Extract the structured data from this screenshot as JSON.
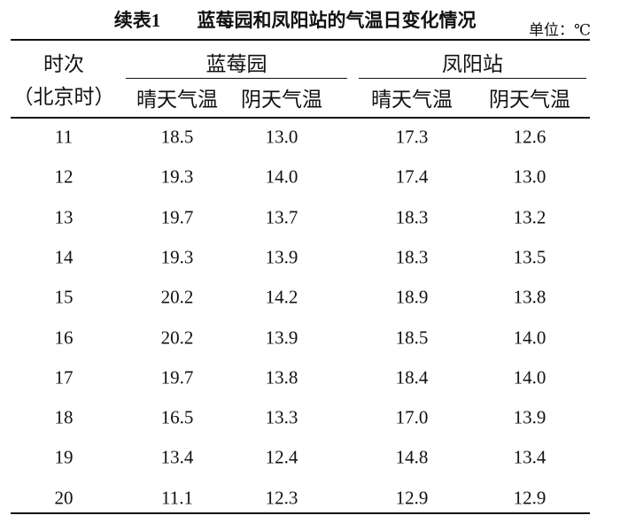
{
  "caption": {
    "label": "续表1",
    "title": "蓝莓园和凤阳站的气温日变化情况",
    "unit": "单位：℃"
  },
  "table": {
    "first_column_header": [
      "时次",
      "（北京时）"
    ],
    "groups": [
      {
        "name": "蓝莓园",
        "columns": [
          "晴天气温",
          "阴天气温"
        ]
      },
      {
        "name": "凤阳站",
        "columns": [
          "晴天气温",
          "阴天气温"
        ]
      }
    ],
    "rows": [
      [
        "11",
        "18.5",
        "13.0",
        "17.3",
        "12.6"
      ],
      [
        "12",
        "19.3",
        "14.0",
        "17.4",
        "13.0"
      ],
      [
        "13",
        "19.7",
        "13.7",
        "18.3",
        "13.2"
      ],
      [
        "14",
        "19.3",
        "13.9",
        "18.3",
        "13.5"
      ],
      [
        "15",
        "20.2",
        "14.2",
        "18.9",
        "13.8"
      ],
      [
        "16",
        "20.2",
        "13.9",
        "18.5",
        "14.0"
      ],
      [
        "17",
        "19.7",
        "13.8",
        "18.4",
        "14.0"
      ],
      [
        "18",
        "16.5",
        "13.3",
        "17.0",
        "13.9"
      ],
      [
        "19",
        "13.4",
        "12.4",
        "14.8",
        "13.4"
      ],
      [
        "20",
        "11.1",
        "12.3",
        "12.9",
        "12.9"
      ]
    ]
  }
}
